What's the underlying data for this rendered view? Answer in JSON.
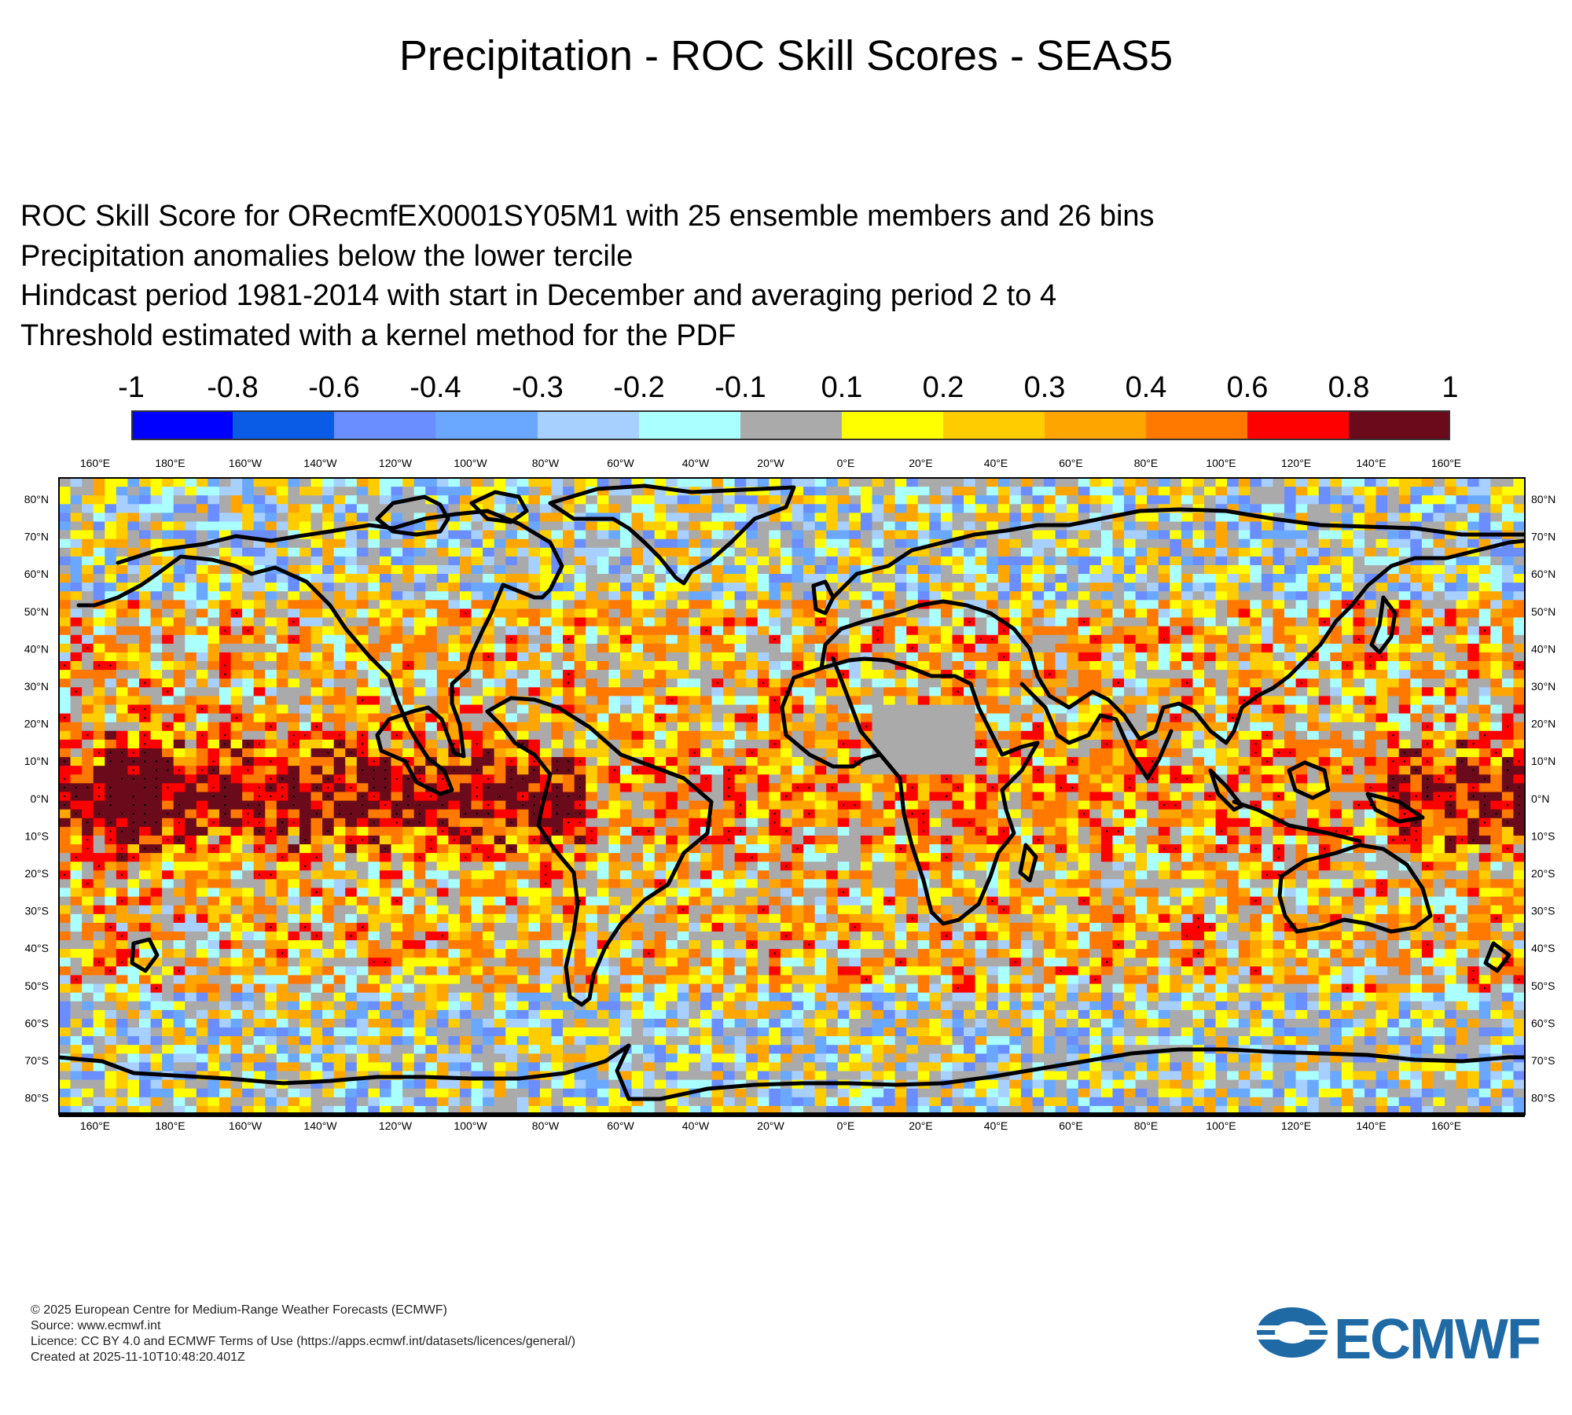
{
  "title": "Precipitation - ROC Skill Scores - SEAS5",
  "subtitles": [
    "ROC Skill Score for ORecmfEX0001SY05M1 with 25 ensemble members and 26 bins",
    "Precipitation anomalies below the lower tercile",
    "Hindcast period 1981-2014 with start in December and averaging period  2 to  4",
    "Threshold estimated with a kernel method for the PDF"
  ],
  "colorbar": {
    "labels": [
      "-1",
      "-0.8",
      "-0.6",
      "-0.4",
      "-0.3",
      "-0.2",
      "-0.1",
      "0.1",
      "0.2",
      "0.3",
      "0.4",
      "0.6",
      "0.8",
      "1"
    ],
    "colors": [
      "#0000ff",
      "#0a5ce6",
      "#6a8dff",
      "#6aa8ff",
      "#a8d0ff",
      "#aaffff",
      "#aaaaaa",
      "#ffff00",
      "#ffcc00",
      "#ffa500",
      "#ff7800",
      "#ff0000",
      "#6b0a1a"
    ]
  },
  "map": {
    "lon_labels": [
      "160°E",
      "180°E",
      "160°W",
      "140°W",
      "120°W",
      "100°W",
      "80°W",
      "60°W",
      "40°W",
      "20°W",
      "0°E",
      "20°E",
      "40°E",
      "60°E",
      "80°E",
      "100°E",
      "120°E",
      "140°E",
      "160°E"
    ],
    "lat_labels": [
      "80°N",
      "70°N",
      "60°N",
      "50°N",
      "40°N",
      "30°N",
      "20°N",
      "10°N",
      "0°N",
      "10°S",
      "20°S",
      "30°S",
      "40°S",
      "50°S",
      "60°S",
      "70°S",
      "80°S"
    ]
  },
  "footer": [
    "© 2025 European Centre for Medium-Range Weather Forecasts (ECMWF)",
    "Source: www.ecmwf.int",
    "Licence: CC BY 4.0 and ECMWF Terms of Use (https://apps.ecmwf.int/datasets/licences/general/)",
    "Created at 2025-11-10T10:48:20.401Z"
  ],
  "logo_text": "ECMWF"
}
